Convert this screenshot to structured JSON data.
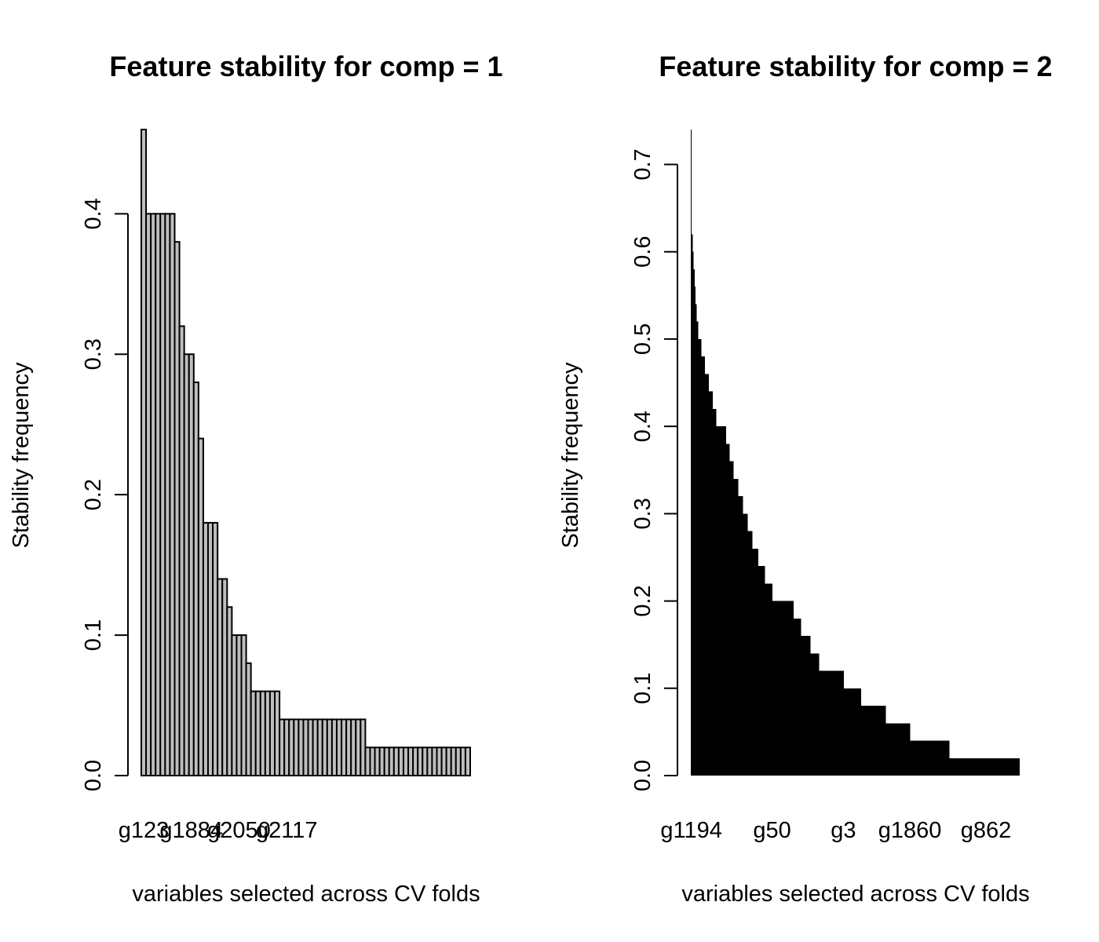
{
  "chart_data": [
    {
      "type": "bar",
      "title": "Feature stability for comp = 1",
      "xlabel": "variables selected across CV folds",
      "ylabel": "Stability frequency",
      "ylim": [
        0,
        0.46
      ],
      "y_ticks": [
        "0.0",
        "0.1",
        "0.2",
        "0.3",
        "0.4"
      ],
      "x_tick_labels": [
        "g123",
        "g1884",
        "g2050",
        "g2117"
      ],
      "x_tick_indices": [
        0,
        10,
        20,
        30
      ],
      "bar_fill": "#bebebe",
      "bar_stroke": "#000000",
      "grid": false,
      "values": [
        0.46,
        0.4,
        0.4,
        0.4,
        0.4,
        0.4,
        0.4,
        0.38,
        0.32,
        0.3,
        0.3,
        0.28,
        0.24,
        0.18,
        0.18,
        0.18,
        0.14,
        0.14,
        0.12,
        0.1,
        0.1,
        0.1,
        0.08,
        0.06,
        0.06,
        0.06,
        0.06,
        0.06,
        0.06,
        0.04,
        0.04,
        0.04,
        0.04,
        0.04,
        0.04,
        0.04,
        0.04,
        0.04,
        0.04,
        0.04,
        0.04,
        0.04,
        0.04,
        0.04,
        0.04,
        0.04,
        0.04,
        0.02,
        0.02,
        0.02,
        0.02,
        0.02,
        0.02,
        0.02,
        0.02,
        0.02,
        0.02,
        0.02,
        0.02,
        0.02,
        0.02,
        0.02,
        0.02,
        0.02,
        0.02,
        0.02,
        0.02,
        0.02,
        0.02
      ]
    },
    {
      "type": "bar",
      "title": "Feature stability for comp = 2",
      "xlabel": "variables selected across CV folds",
      "ylabel": "Stability frequency",
      "ylim": [
        0,
        0.74
      ],
      "y_ticks": [
        "0.0",
        "0.1",
        "0.2",
        "0.3",
        "0.4",
        "0.5",
        "0.6",
        "0.7"
      ],
      "x_tick_labels": [
        "g1194",
        "g50",
        "g3",
        "g1860",
        "g862"
      ],
      "x_tick_indices": [
        0,
        85,
        160,
        230,
        310
      ],
      "bar_fill": "#000000",
      "bar_stroke": "#000000",
      "grid": false,
      "steps": [
        {
          "value": 0.74,
          "count": 1
        },
        {
          "value": 0.62,
          "count": 1
        },
        {
          "value": 0.6,
          "count": 1
        },
        {
          "value": 0.58,
          "count": 1
        },
        {
          "value": 0.56,
          "count": 1
        },
        {
          "value": 0.54,
          "count": 1
        },
        {
          "value": 0.52,
          "count": 2
        },
        {
          "value": 0.5,
          "count": 3
        },
        {
          "value": 0.48,
          "count": 4
        },
        {
          "value": 0.46,
          "count": 4
        },
        {
          "value": 0.44,
          "count": 4
        },
        {
          "value": 0.42,
          "count": 4
        },
        {
          "value": 0.4,
          "count": 10
        },
        {
          "value": 0.38,
          "count": 4
        },
        {
          "value": 0.36,
          "count": 4
        },
        {
          "value": 0.34,
          "count": 5
        },
        {
          "value": 0.32,
          "count": 5
        },
        {
          "value": 0.3,
          "count": 5
        },
        {
          "value": 0.28,
          "count": 5
        },
        {
          "value": 0.26,
          "count": 6
        },
        {
          "value": 0.24,
          "count": 7
        },
        {
          "value": 0.22,
          "count": 8
        },
        {
          "value": 0.2,
          "count": 22
        },
        {
          "value": 0.18,
          "count": 8
        },
        {
          "value": 0.16,
          "count": 10
        },
        {
          "value": 0.14,
          "count": 9
        },
        {
          "value": 0.12,
          "count": 26
        },
        {
          "value": 0.1,
          "count": 18
        },
        {
          "value": 0.08,
          "count": 26
        },
        {
          "value": 0.06,
          "count": 26
        },
        {
          "value": 0.04,
          "count": 41
        },
        {
          "value": 0.02,
          "count": 74
        }
      ]
    }
  ]
}
